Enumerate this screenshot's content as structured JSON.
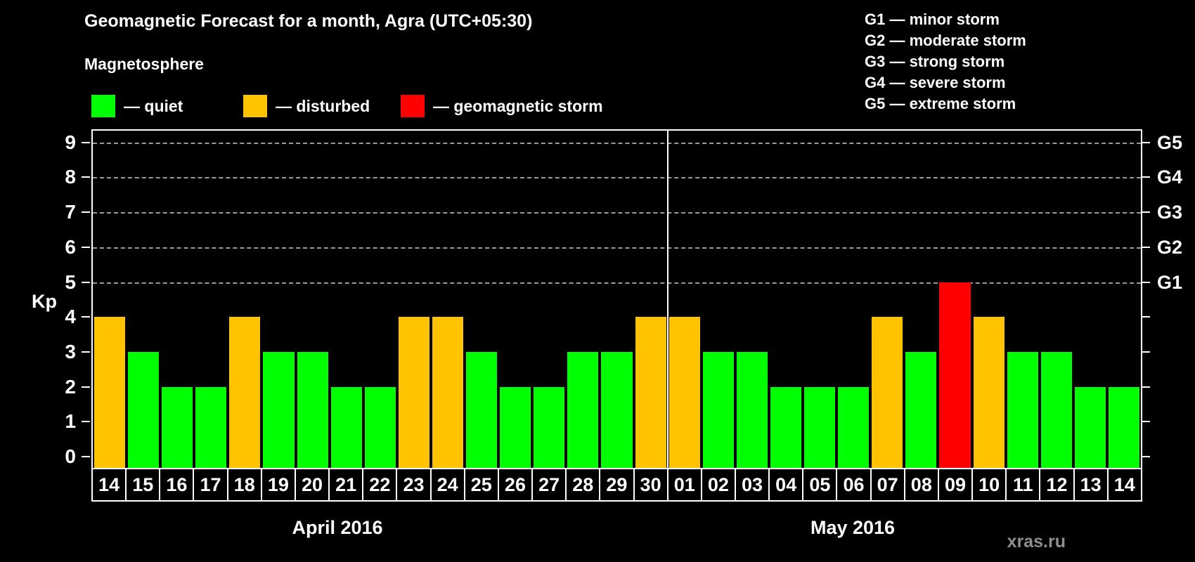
{
  "header": {
    "title": "Geomagnetic Forecast for a month, Agra (UTC+05:30)",
    "subtitle": "Magnetosphere"
  },
  "legend": {
    "items": [
      {
        "name": "quiet",
        "label": "— quiet",
        "color": "#00FF00"
      },
      {
        "name": "disturbed",
        "label": "— disturbed",
        "color": "#FFC300"
      },
      {
        "name": "storm",
        "label": "— geomagnetic storm",
        "color": "#FF0000"
      }
    ]
  },
  "g_scale_legend": {
    "lines": [
      "G1 — minor storm",
      "G2 — moderate storm",
      "G3 — strong storm",
      "G4 — severe storm",
      "G5 — extreme storm"
    ]
  },
  "watermark": "xras.ru",
  "chart_data": {
    "type": "bar",
    "title": "Geomagnetic Forecast for a month, Agra (UTC+05:30)",
    "ylabel": "Kp",
    "ylim": [
      0,
      9
    ],
    "y_ticks": [
      0,
      1,
      2,
      3,
      4,
      5,
      6,
      7,
      8,
      9
    ],
    "gridlines_at": [
      5,
      6,
      7,
      8,
      9
    ],
    "grid": "dashed, only at Kp 5-9",
    "legend_position": "top",
    "right_axis_labels": [
      {
        "kp": 5,
        "label": "G1"
      },
      {
        "kp": 6,
        "label": "G2"
      },
      {
        "kp": 7,
        "label": "G3"
      },
      {
        "kp": 8,
        "label": "G4"
      },
      {
        "kp": 9,
        "label": "G5"
      }
    ],
    "months": [
      {
        "label": "April 2016",
        "days": 17
      },
      {
        "label": "May 2016",
        "days": 14
      }
    ],
    "categories": [
      "14",
      "15",
      "16",
      "17",
      "18",
      "19",
      "20",
      "21",
      "22",
      "23",
      "24",
      "25",
      "26",
      "27",
      "28",
      "29",
      "30",
      "01",
      "02",
      "03",
      "04",
      "05",
      "06",
      "07",
      "08",
      "09",
      "10",
      "11",
      "12",
      "13",
      "14"
    ],
    "values": [
      4,
      3,
      2,
      2,
      4,
      3,
      3,
      2,
      2,
      4,
      4,
      3,
      2,
      2,
      3,
      3,
      4,
      4,
      3,
      3,
      2,
      2,
      2,
      4,
      3,
      5,
      4,
      3,
      3,
      2,
      2
    ],
    "statuses": [
      "disturbed",
      "quiet",
      "quiet",
      "quiet",
      "disturbed",
      "quiet",
      "quiet",
      "quiet",
      "quiet",
      "disturbed",
      "disturbed",
      "quiet",
      "quiet",
      "quiet",
      "quiet",
      "quiet",
      "disturbed",
      "disturbed",
      "quiet",
      "quiet",
      "quiet",
      "quiet",
      "quiet",
      "disturbed",
      "quiet",
      "storm",
      "disturbed",
      "quiet",
      "quiet",
      "quiet",
      "quiet"
    ],
    "status_colors": {
      "quiet": "#00FF00",
      "disturbed": "#FFC300",
      "storm": "#FF0000"
    }
  }
}
